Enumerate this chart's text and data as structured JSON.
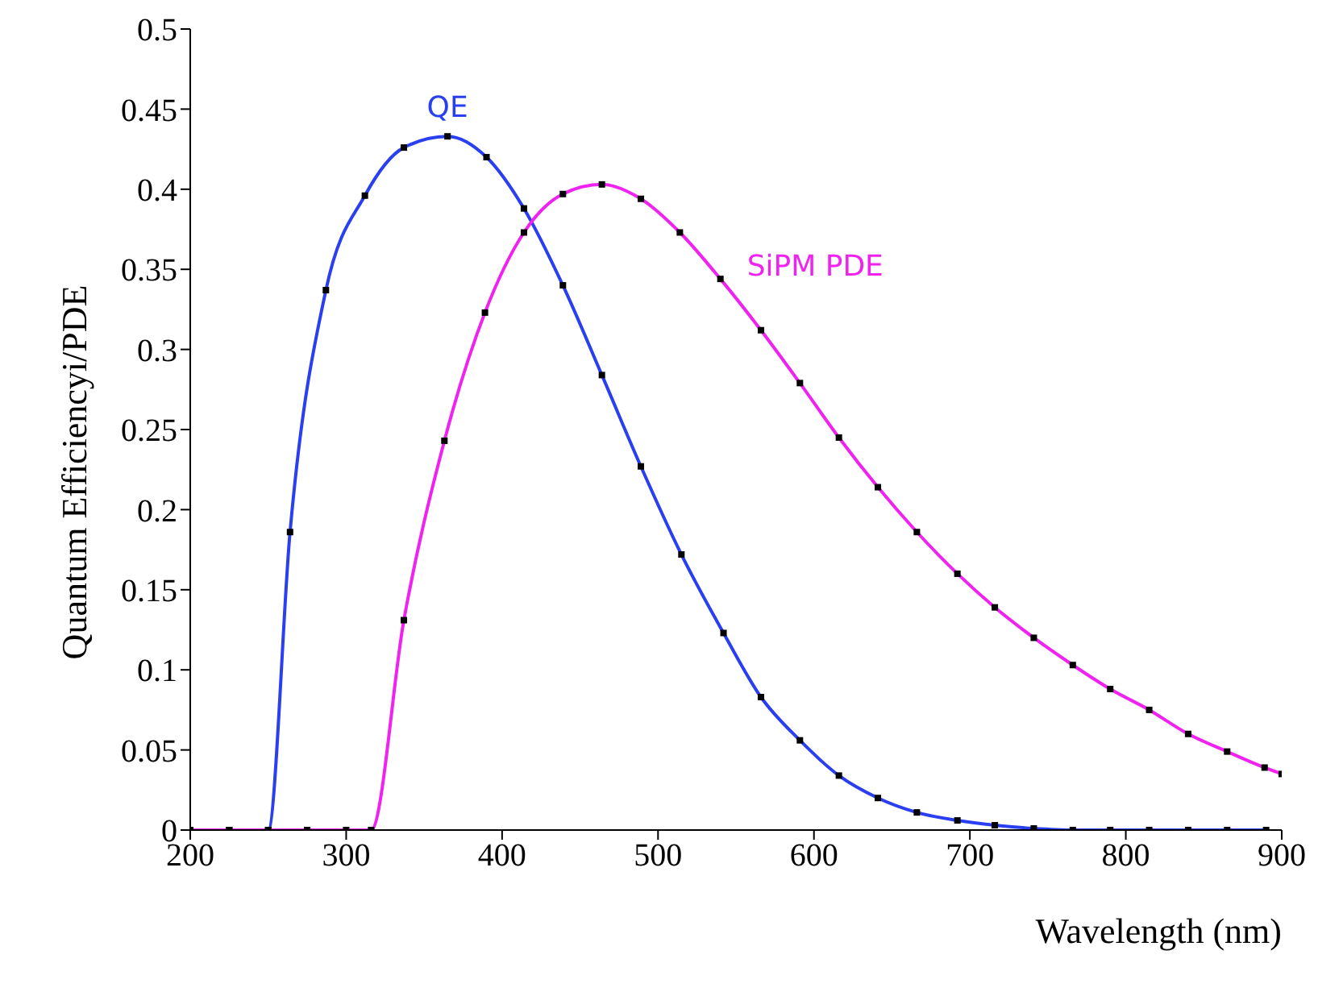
{
  "chart_data": {
    "type": "line",
    "xlabel": "Wavelength (nm)",
    "ylabel": "Quantum Efficiencyi/PDE",
    "xlim": [
      200,
      900
    ],
    "ylim": [
      0,
      0.5
    ],
    "xticks": [
      200,
      300,
      400,
      500,
      600,
      700,
      800,
      900
    ],
    "yticks": [
      0,
      0.05,
      0.1,
      0.15,
      0.2,
      0.25,
      0.3,
      0.35,
      0.4,
      0.45,
      0.5
    ],
    "grid": false,
    "legend": false,
    "marker": "square",
    "line_style": "solid",
    "series": [
      {
        "name": "QE",
        "color": "#2a3ff0",
        "x": [
          200,
          225,
          250,
          264,
          287,
          312,
          337,
          365,
          390,
          414,
          439,
          464,
          489,
          515,
          542,
          566,
          591,
          616,
          641,
          666,
          692,
          716,
          741,
          766,
          790,
          815,
          840,
          865,
          890
        ],
        "values": [
          0,
          0,
          0,
          0.186,
          0.337,
          0.396,
          0.426,
          0.433,
          0.42,
          0.388,
          0.34,
          0.284,
          0.227,
          0.172,
          0.123,
          0.083,
          0.056,
          0.034,
          0.02,
          0.011,
          0.006,
          0.003,
          0.001,
          0,
          0,
          0,
          0,
          0,
          0
        ]
      },
      {
        "name": "SiPM PDE",
        "color": "#f022f0",
        "x": [
          200,
          225,
          250,
          275,
          300,
          316,
          337,
          363,
          389,
          414,
          439,
          464,
          489,
          514,
          540,
          566,
          591,
          616,
          641,
          666,
          692,
          716,
          741,
          766,
          790,
          815,
          840,
          865,
          889,
          900
        ],
        "values": [
          0,
          0,
          0,
          0,
          0,
          0,
          0.131,
          0.243,
          0.323,
          0.373,
          0.397,
          0.403,
          0.394,
          0.373,
          0.344,
          0.312,
          0.279,
          0.245,
          0.214,
          0.186,
          0.16,
          0.139,
          0.12,
          0.103,
          0.088,
          0.075,
          0.06,
          0.049,
          0.039,
          0.035
        ]
      }
    ]
  }
}
